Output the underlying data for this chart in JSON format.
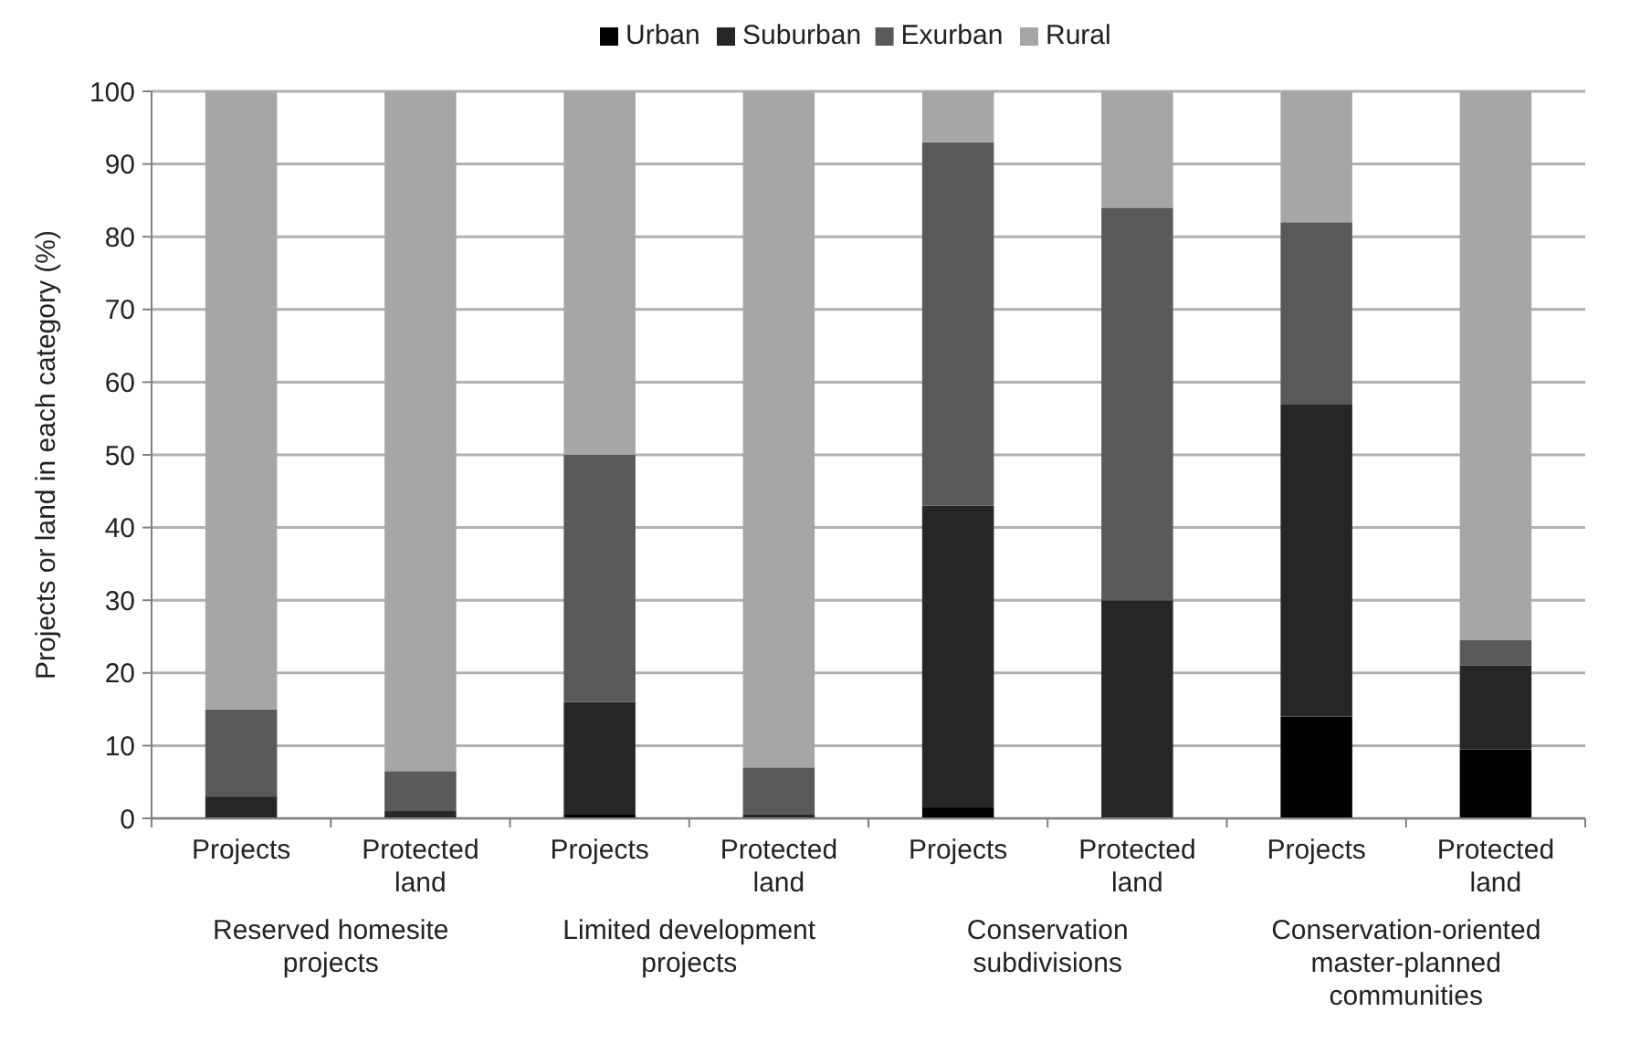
{
  "chart_data": {
    "type": "bar",
    "stacked": true,
    "ylabel": "Projects or land in each category (%)",
    "categories": [
      "Projects",
      "Protected land",
      "Projects",
      "Protected land",
      "Projects",
      "Protected land",
      "Projects",
      "Protected land"
    ],
    "series": [
      {
        "name": "Urban",
        "color": "#000000",
        "values": [
          0,
          0,
          0.5,
          0,
          1.5,
          0,
          14,
          9.5
        ]
      },
      {
        "name": "Suburban",
        "color": "#262626",
        "values": [
          3,
          1,
          15.5,
          0.5,
          41.5,
          30,
          43,
          11.5
        ]
      },
      {
        "name": "Exurban",
        "color": "#595959",
        "values": [
          12,
          5.5,
          34,
          6.5,
          50,
          54,
          25,
          3.5
        ]
      },
      {
        "name": "Rural",
        "color": "#a6a6a6",
        "values": [
          85,
          93.5,
          50,
          93,
          7,
          16,
          18,
          75.5
        ]
      }
    ],
    "annotations": [
      "Reserved homesite projects",
      "Limited development projects",
      "Conservation subdivisions",
      "Conservation-oriented master-planned communities"
    ],
    "ylim": [
      0,
      100
    ],
    "yticks": [
      0,
      10,
      20,
      30,
      40,
      50,
      60,
      70,
      80,
      90,
      100
    ],
    "grid": "y",
    "legend": "top"
  }
}
